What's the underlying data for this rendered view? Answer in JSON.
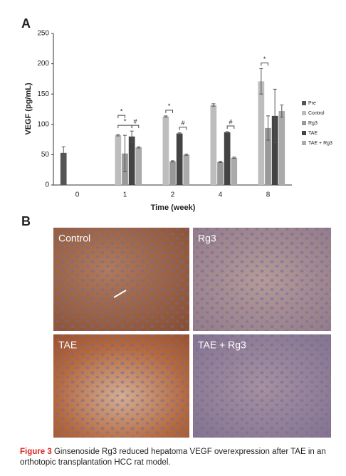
{
  "chart_data": {
    "type": "bar",
    "panel_label": "A",
    "y_label": "VEGF (pg/mL)",
    "x_label": "Time (week)",
    "categories": [
      "0",
      "1",
      "2",
      "4",
      "8"
    ],
    "series": [
      {
        "name": "Pre",
        "color": "#555555",
        "values": [
          53,
          null,
          null,
          null,
          null
        ],
        "errors": [
          10,
          null,
          null,
          null,
          null
        ]
      },
      {
        "name": "Control",
        "color": "#bdbdbd",
        "values": [
          null,
          82,
          113,
          132,
          171
        ],
        "errors": [
          null,
          1,
          1,
          2,
          21
        ]
      },
      {
        "name": "Rg3",
        "color": "#999999",
        "values": [
          null,
          52,
          39,
          38,
          94
        ],
        "errors": [
          null,
          30,
          1,
          1,
          20
        ]
      },
      {
        "name": "TAE",
        "color": "#444444",
        "values": [
          null,
          80,
          85,
          87,
          114
        ],
        "errors": [
          null,
          9,
          1,
          1,
          44
        ]
      },
      {
        "name": "TAE + Rg3",
        "color": "#aaaaaa",
        "values": [
          null,
          62,
          50,
          45,
          122
        ],
        "errors": [
          null,
          1,
          1,
          1,
          10
        ]
      }
    ],
    "annotations": [
      {
        "label": "*",
        "category": "1",
        "between": [
          "Control",
          "TAE"
        ]
      },
      {
        "label": "*",
        "category": "1",
        "between": [
          "Control",
          "Rg3"
        ]
      },
      {
        "label": "#",
        "category": "1",
        "between": [
          "TAE",
          "TAE + Rg3"
        ]
      },
      {
        "label": "*",
        "category": "2",
        "between": [
          "Control",
          "Rg3"
        ]
      },
      {
        "label": "#",
        "category": "2",
        "between": [
          "TAE",
          "TAE + Rg3"
        ]
      },
      {
        "label": "#",
        "category": "4",
        "between": [
          "TAE",
          "TAE + Rg3"
        ]
      },
      {
        "label": "*",
        "category": "8",
        "between": [
          "Control",
          "Rg3"
        ]
      }
    ],
    "ylim": [
      0,
      250
    ],
    "yticks": [
      0,
      50,
      100,
      150,
      200,
      250
    ],
    "legend": "right"
  },
  "panel_b": {
    "label": "B",
    "micrographs": [
      "Control",
      "Rg3",
      "TAE",
      "TAE + Rg3"
    ]
  },
  "caption": {
    "label": "Figure 3",
    "text": "Ginsenoside Rg3 reduced hepatoma VEGF overexpression after TAE in an orthotopic transplantation HCC rat model."
  }
}
